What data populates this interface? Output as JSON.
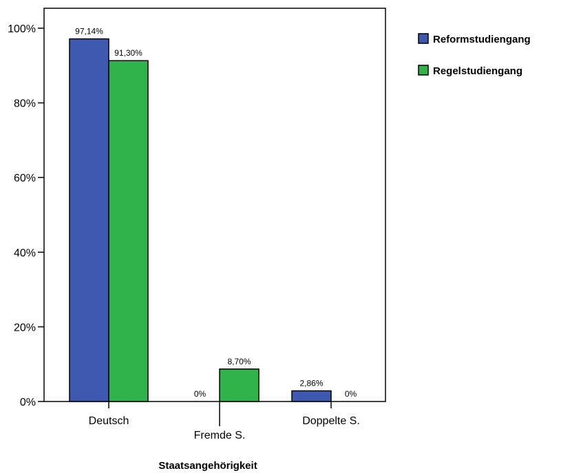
{
  "chart_data": {
    "type": "bar",
    "xlabel": "Staatsangehörigkeit",
    "ylabel": "",
    "ylim": [
      0,
      100
    ],
    "yticks": [
      "0%",
      "20%",
      "40%",
      "60%",
      "80%",
      "100%"
    ],
    "ytick_values": [
      0,
      20,
      40,
      60,
      80,
      100
    ],
    "categories": [
      "Deutsch",
      "Fremde S.",
      "Doppelte S."
    ],
    "series": [
      {
        "name": "Reformstudiengang",
        "color": "#3f58b0",
        "values": [
          97.14,
          0,
          2.86
        ],
        "labels": [
          "97,14%",
          "0%",
          "2,86%"
        ]
      },
      {
        "name": "Regelstudiengang",
        "color": "#2fb34a",
        "values": [
          91.3,
          8.7,
          0
        ],
        "labels": [
          "91,30%",
          "8,70%",
          "0%"
        ]
      }
    ],
    "legend_position": "top-right",
    "grid": false
  }
}
